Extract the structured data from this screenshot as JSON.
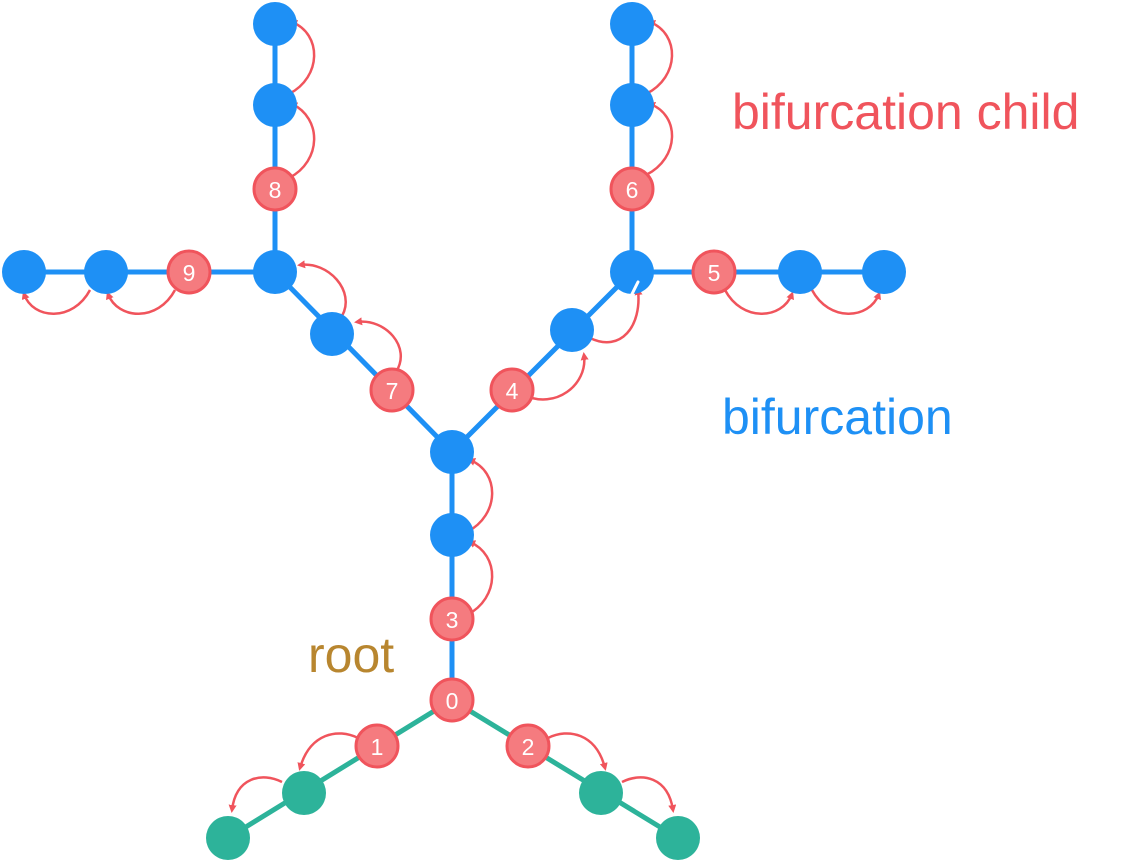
{
  "labels": {
    "bifurcation_child": "bifurcation child",
    "bifurcation": "bifurcation",
    "root": "root"
  },
  "node_numbers": {
    "n0": "0",
    "n1": "1",
    "n2": "2",
    "n3": "3",
    "n4": "4",
    "n5": "5",
    "n6": "6",
    "n7": "7",
    "n8": "8",
    "n9": "9"
  },
  "colors": {
    "blue": "#1e90f5",
    "green": "#2db39a",
    "red": "#f0545c",
    "numbered_fill": "#f57b7f",
    "root_label": "#b8862f"
  }
}
